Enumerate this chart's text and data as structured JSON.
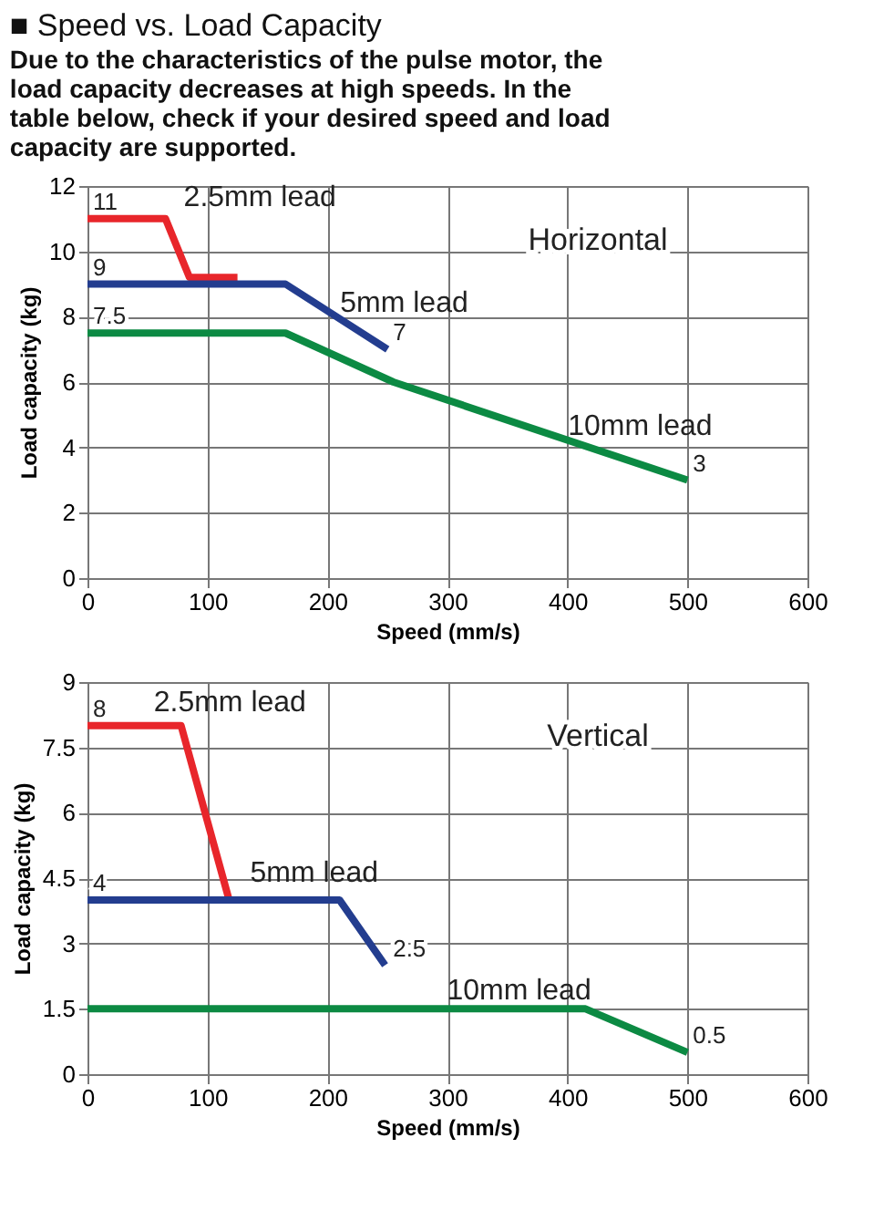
{
  "chart_data": [
    {
      "type": "line",
      "title": "■ Speed vs. Load Capacity",
      "subtitle": "Due to the characteristics of the pulse motor, the load capacity decreases at high speeds. In the table below, check if your desired speed and load capacity are supported.",
      "xlabel": "Speed (mm/s)",
      "ylabel": "Load capacity (kg)",
      "xlim": [
        0,
        600
      ],
      "xticks": [
        0,
        100,
        200,
        300,
        400,
        500,
        600
      ],
      "ylim": [
        0,
        12
      ],
      "yticks": [
        0,
        2,
        4,
        6,
        8,
        10,
        12
      ],
      "grid": true,
      "marker": "none",
      "line_style": "solid",
      "series": [
        {
          "name": "2.5mm lead",
          "color": "#e8262b",
          "x": [
            0,
            65,
            85,
            125
          ],
          "values": [
            11,
            11,
            9.2,
            9.2
          ]
        },
        {
          "name": "5mm lead",
          "color": "#233d8f",
          "x": [
            0,
            165,
            250
          ],
          "values": [
            9,
            9,
            7
          ]
        },
        {
          "name": "10mm lead",
          "color": "#0c8a43",
          "x": [
            0,
            165,
            255,
            500
          ],
          "values": [
            7.5,
            7.5,
            6,
            3
          ]
        }
      ],
      "annotations": [
        "Horizontal",
        {
          "text": "11",
          "x": 0,
          "y": 11
        },
        {
          "text": "9",
          "x": 0,
          "y": 9
        },
        {
          "text": "7.5",
          "x": 0,
          "y": 7.5
        },
        {
          "text": "7",
          "x": 250,
          "y": 7
        },
        {
          "text": "3",
          "x": 500,
          "y": 3
        }
      ]
    },
    {
      "type": "line",
      "xlabel": "Speed (mm/s)",
      "ylabel": "Load capacity (kg)",
      "xlim": [
        0,
        600
      ],
      "xticks": [
        0,
        100,
        200,
        300,
        400,
        500,
        600
      ],
      "ylim": [
        0,
        9
      ],
      "yticks": [
        0,
        1.5,
        3,
        4.5,
        6,
        7.5,
        9
      ],
      "grid": true,
      "marker": "none",
      "line_style": "solid",
      "series": [
        {
          "name": "2.5mm lead",
          "color": "#e8262b",
          "x": [
            0,
            78,
            118
          ],
          "values": [
            8,
            8,
            4
          ]
        },
        {
          "name": "5mm lead",
          "color": "#233d8f",
          "x": [
            0,
            210,
            248
          ],
          "values": [
            4,
            4,
            2.5
          ]
        },
        {
          "name": "10mm lead",
          "color": "#0c8a43",
          "x": [
            0,
            415,
            500
          ],
          "values": [
            1.5,
            1.5,
            0.5
          ]
        }
      ],
      "annotations": [
        "Vertical",
        {
          "text": "8",
          "x": 0,
          "y": 8
        },
        {
          "text": "4",
          "x": 0,
          "y": 4
        },
        {
          "text": "2.5",
          "x": 250,
          "y": 2.5
        },
        {
          "text": "0.5",
          "x": 500,
          "y": 0.5
        }
      ]
    }
  ]
}
